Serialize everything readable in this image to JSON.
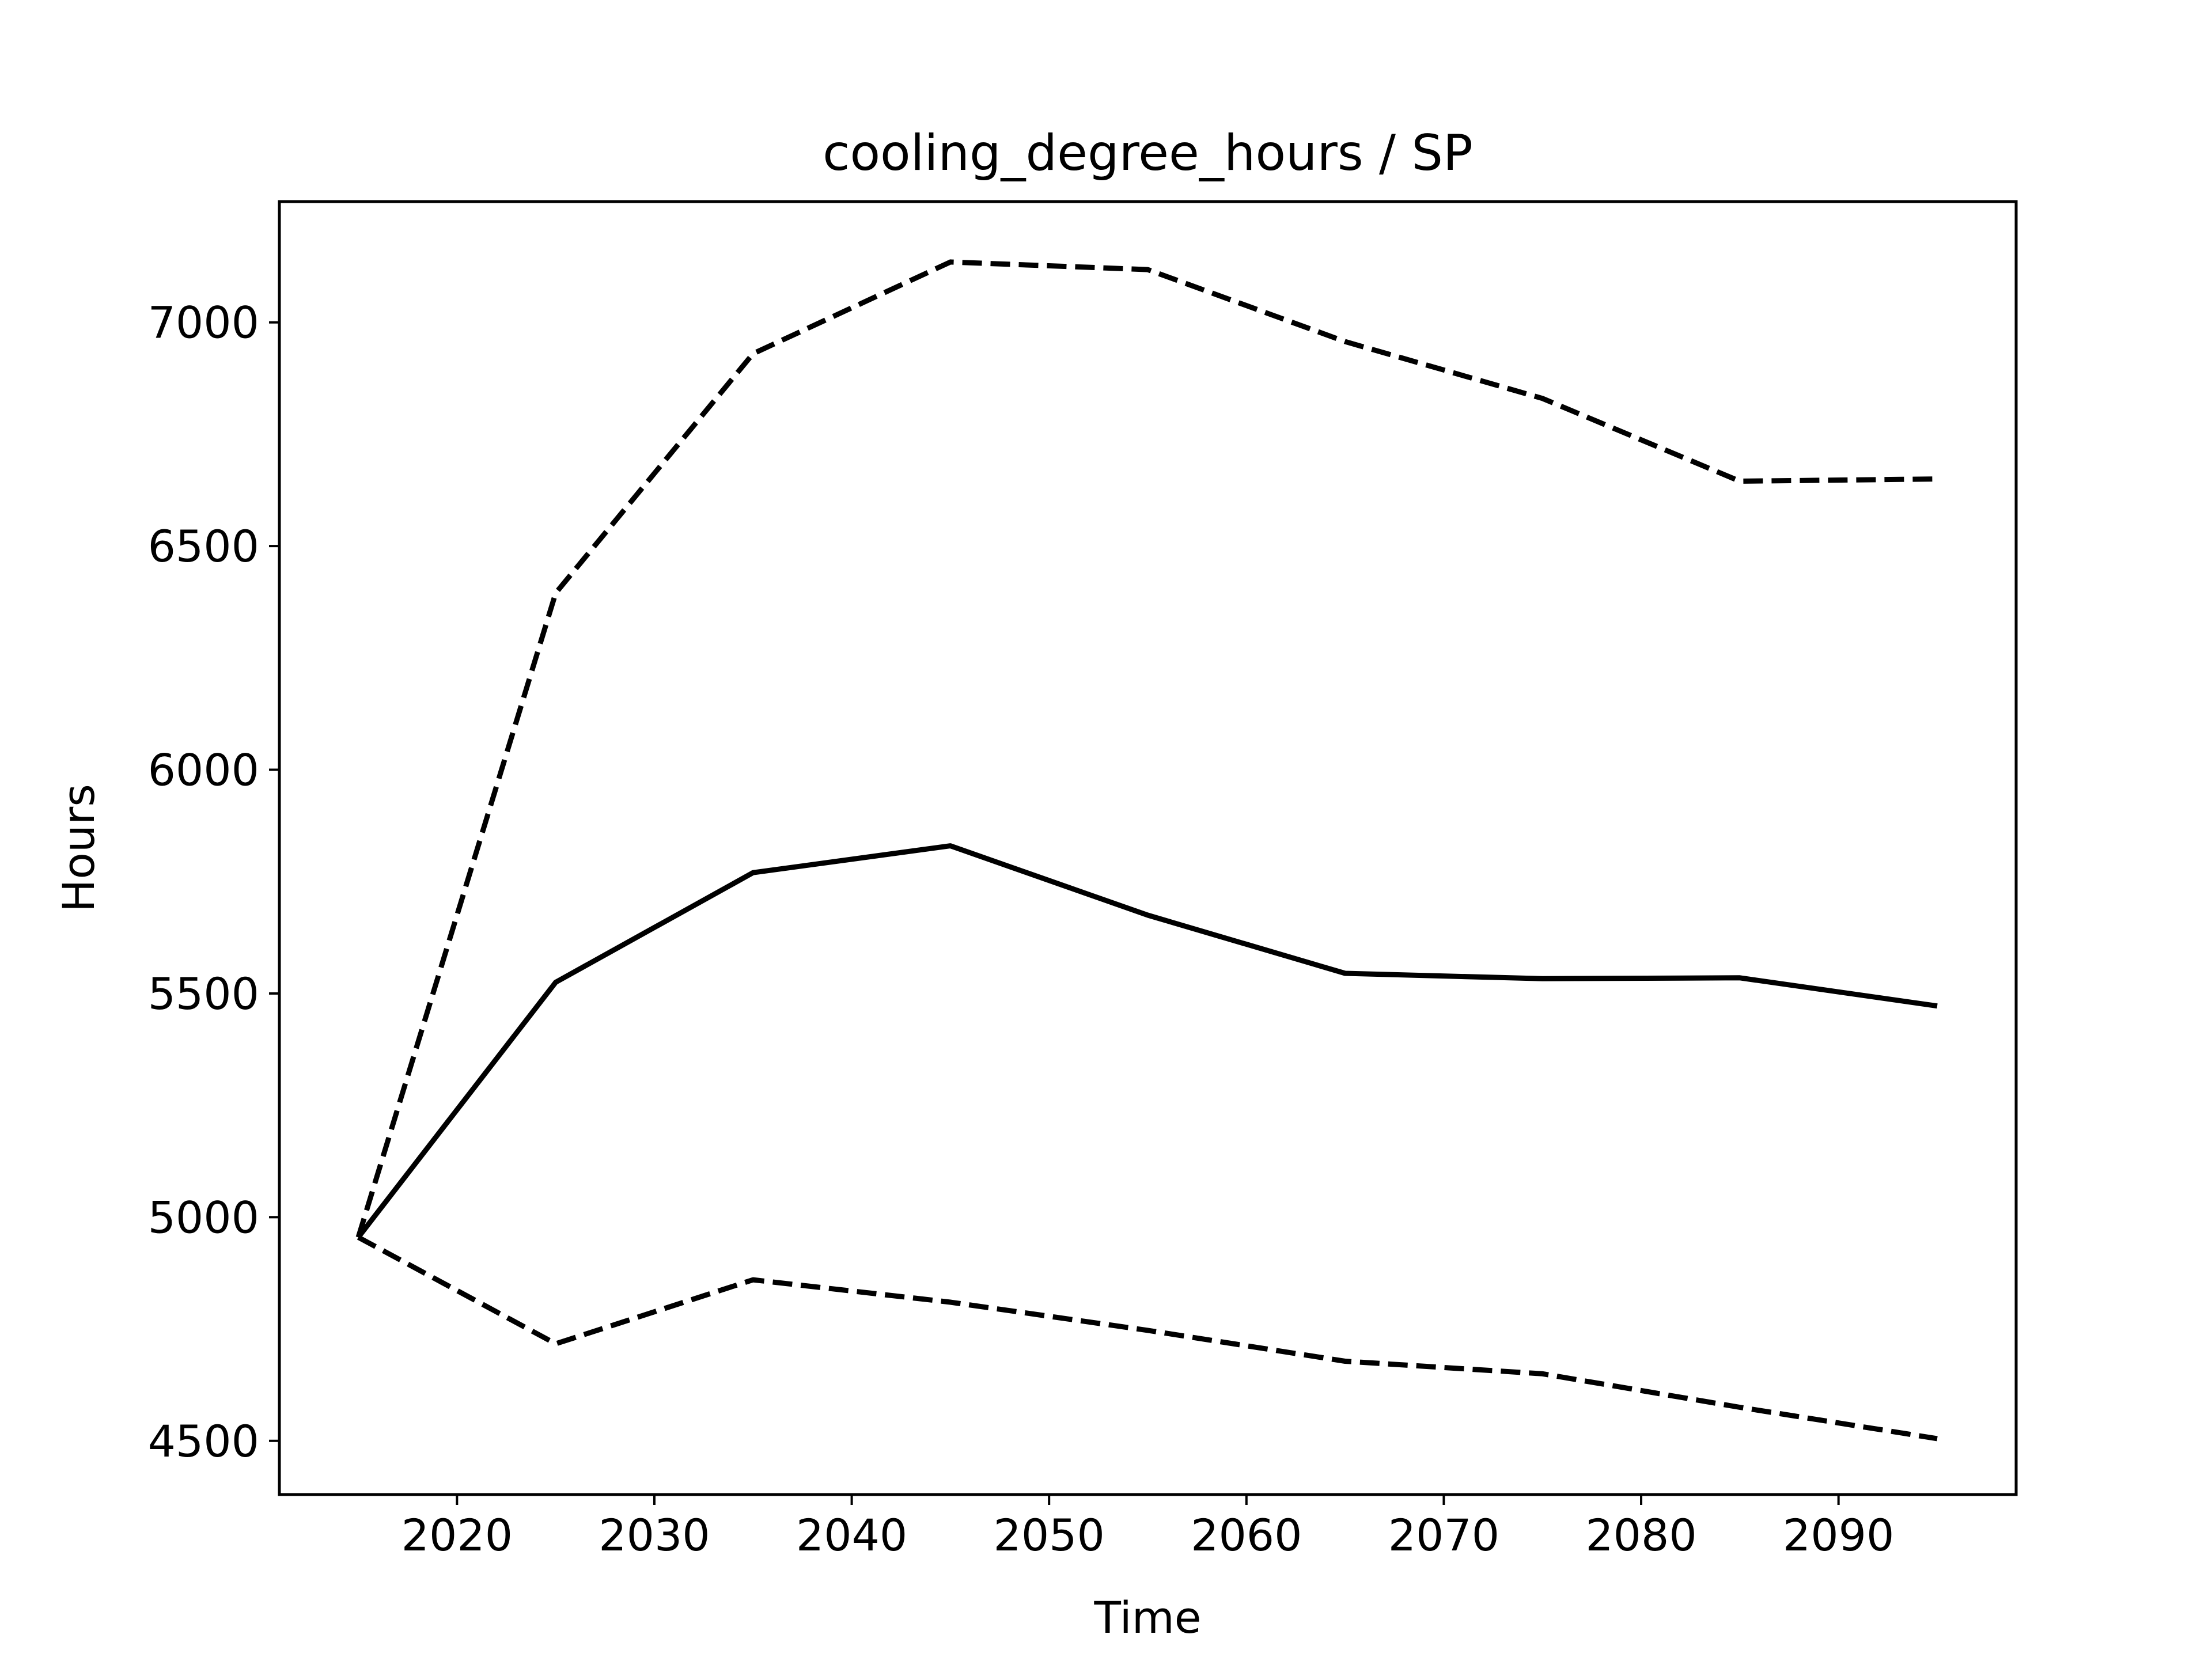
{
  "chart_data": {
    "type": "line",
    "title": "cooling_degree_hours / SP",
    "xlabel": "Time",
    "ylabel": "Hours",
    "x": [
      2015,
      2025,
      2035,
      2045,
      2055,
      2065,
      2075,
      2085,
      2095
    ],
    "xlim": [
      2011,
      2099
    ],
    "ylim": [
      4380,
      7270
    ],
    "xticks": [
      2020,
      2030,
      2040,
      2050,
      2060,
      2070,
      2080,
      2090
    ],
    "xtick_labels": [
      "2020",
      "2030",
      "2040",
      "2050",
      "2060",
      "2070",
      "2080",
      "2090"
    ],
    "yticks": [
      4500,
      5000,
      5500,
      6000,
      6500,
      7000
    ],
    "ytick_labels": [
      "4500",
      "5000",
      "5500",
      "6000",
      "6500",
      "7000"
    ],
    "grid": false,
    "line_color": "#000000",
    "series": [
      {
        "style": "solid",
        "values": [
          4955,
          5525,
          5770,
          5830,
          5675,
          5545,
          5533,
          5535,
          5472
        ]
      },
      {
        "style": "dashed",
        "values": [
          4955,
          6395,
          6930,
          7135,
          7118,
          6957,
          6830,
          6645,
          6650
        ]
      },
      {
        "style": "dashed",
        "values": [
          4955,
          4717,
          4860,
          4810,
          4747,
          4678,
          4650,
          4575,
          4505
        ]
      }
    ]
  }
}
